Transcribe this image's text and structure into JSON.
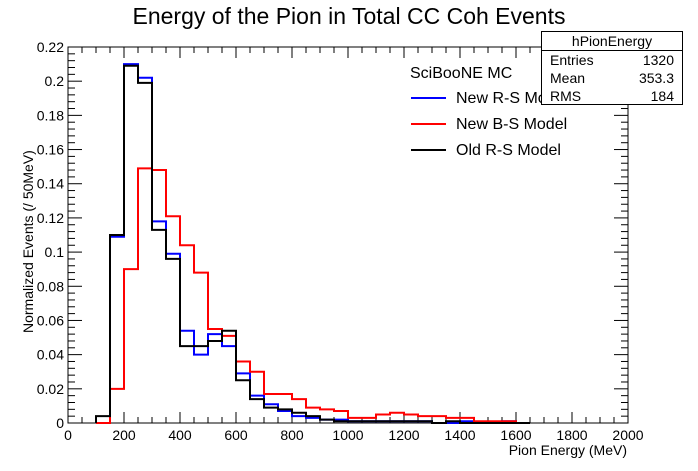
{
  "chart_data": {
    "type": "line",
    "title": "Energy of the Pion in Total CC Coh Events",
    "xlabel": "Pion Energy (MeV)",
    "ylabel": "Normalized Events (/ 50MeV)",
    "xlim": [
      0,
      2000
    ],
    "ylim": [
      0,
      0.22
    ],
    "bin_width": 50,
    "x_ticks": [
      0,
      200,
      400,
      600,
      800,
      1000,
      1200,
      1400,
      1600,
      1800,
      2000
    ],
    "x_tick_labels": [
      "0",
      "200",
      "400",
      "600",
      "800",
      "1000",
      "1200",
      "1400",
      "1600",
      "1800",
      "2000"
    ],
    "y_ticks": [
      0,
      0.02,
      0.04,
      0.06,
      0.08,
      0.1,
      0.12,
      0.14,
      0.16,
      0.18,
      0.2,
      0.22
    ],
    "y_tick_labels": [
      "0",
      "0.02",
      "0.04",
      "0.06",
      "0.08",
      "0.1",
      "0.12",
      "0.14",
      "0.16",
      "0.18",
      "0.2",
      "0.22"
    ],
    "legend_title": "SciBooNE MC",
    "legend_position": "top-right",
    "series": [
      {
        "name": "New R-S Model",
        "color": "#0000ff",
        "bins": [
          [
            100,
            0.0
          ],
          [
            150,
            0.109
          ],
          [
            200,
            0.21
          ],
          [
            250,
            0.202
          ],
          [
            300,
            0.118
          ],
          [
            350,
            0.099
          ],
          [
            400,
            0.054
          ],
          [
            450,
            0.04
          ],
          [
            500,
            0.052
          ],
          [
            550,
            0.045
          ],
          [
            600,
            0.029
          ],
          [
            650,
            0.016
          ],
          [
            700,
            0.011
          ],
          [
            750,
            0.007
          ],
          [
            800,
            0.004
          ],
          [
            850,
            0.003
          ],
          [
            900,
            0.002
          ],
          [
            950,
            0.002
          ],
          [
            1000,
            0.001
          ],
          [
            1050,
            0.001
          ],
          [
            1100,
            0.001
          ],
          [
            1150,
            0.001
          ],
          [
            1200,
            0.001
          ],
          [
            1250,
            0.001
          ],
          [
            1300,
            0.0
          ],
          [
            1350,
            0.0
          ],
          [
            1400,
            0.001
          ],
          [
            1450,
            0.0
          ],
          [
            1500,
            0.0
          ],
          [
            1550,
            0.001
          ],
          [
            1600,
            0.0
          ]
        ]
      },
      {
        "name": "New B-S Model",
        "color": "#ff0000",
        "bins": [
          [
            100,
            0.0
          ],
          [
            150,
            0.02
          ],
          [
            200,
            0.09
          ],
          [
            250,
            0.149
          ],
          [
            300,
            0.148
          ],
          [
            350,
            0.121
          ],
          [
            400,
            0.104
          ],
          [
            450,
            0.088
          ],
          [
            500,
            0.055
          ],
          [
            550,
            0.051
          ],
          [
            600,
            0.036
          ],
          [
            650,
            0.03
          ],
          [
            700,
            0.017
          ],
          [
            750,
            0.017
          ],
          [
            800,
            0.014
          ],
          [
            850,
            0.009
          ],
          [
            900,
            0.008
          ],
          [
            950,
            0.007
          ],
          [
            1000,
            0.003
          ],
          [
            1050,
            0.003
          ],
          [
            1100,
            0.005
          ],
          [
            1150,
            0.006
          ],
          [
            1200,
            0.005
          ],
          [
            1250,
            0.004
          ],
          [
            1300,
            0.004
          ],
          [
            1350,
            0.003
          ],
          [
            1400,
            0.003
          ],
          [
            1450,
            0.001
          ],
          [
            1500,
            0.001
          ],
          [
            1550,
            0.001
          ],
          [
            1600,
            0.0
          ]
        ]
      },
      {
        "name": "Old R-S Model",
        "color": "#000000",
        "bins": [
          [
            100,
            0.004
          ],
          [
            150,
            0.11
          ],
          [
            200,
            0.209
          ],
          [
            250,
            0.199
          ],
          [
            300,
            0.113
          ],
          [
            350,
            0.096
          ],
          [
            400,
            0.045
          ],
          [
            450,
            0.045
          ],
          [
            500,
            0.048
          ],
          [
            550,
            0.054
          ],
          [
            600,
            0.025
          ],
          [
            650,
            0.014
          ],
          [
            700,
            0.009
          ],
          [
            750,
            0.008
          ],
          [
            800,
            0.006
          ],
          [
            850,
            0.004
          ],
          [
            900,
            0.002
          ],
          [
            950,
            0.001
          ],
          [
            1000,
            0.001
          ],
          [
            1050,
            0.001
          ],
          [
            1100,
            0.001
          ],
          [
            1150,
            0.001
          ],
          [
            1200,
            0.001
          ],
          [
            1250,
            0.001
          ],
          [
            1300,
            0.0
          ],
          [
            1350,
            0.001
          ],
          [
            1400,
            0.0
          ],
          [
            1450,
            0.0
          ],
          [
            1500,
            0.0
          ],
          [
            1550,
            0.0
          ],
          [
            1600,
            0.0
          ]
        ]
      }
    ],
    "stats_box": {
      "title": "hPionEnergy",
      "rows": [
        {
          "label": "Entries",
          "value": "1320"
        },
        {
          "label": "Mean",
          "value": "353.3"
        },
        {
          "label": "RMS",
          "value": "184"
        }
      ]
    }
  }
}
